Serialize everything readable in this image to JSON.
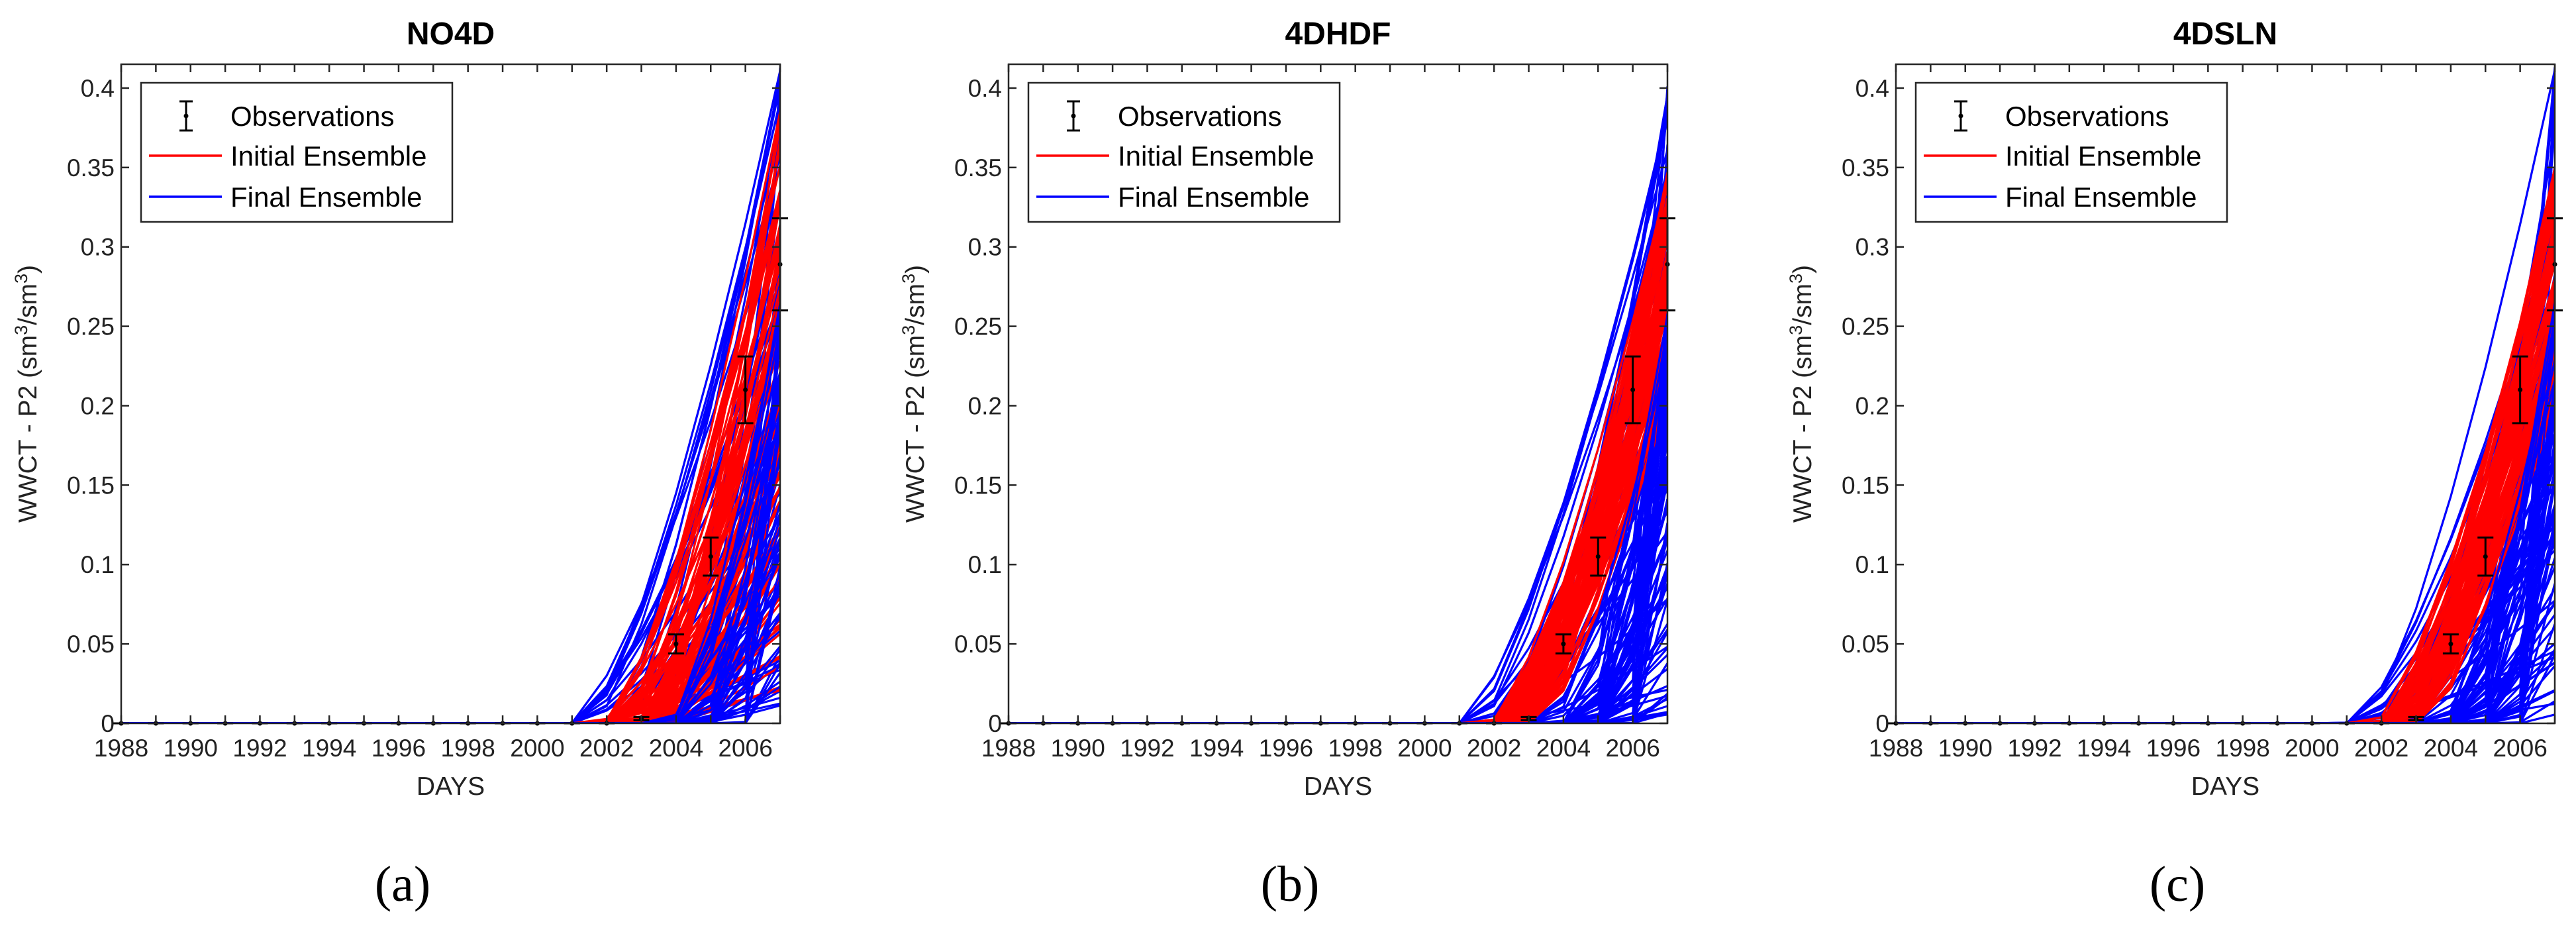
{
  "figure": {
    "captions": [
      "(a)",
      "(b)",
      "(c)"
    ]
  },
  "legend": {
    "observations": "Observations",
    "initial": "Initial Ensemble",
    "final": "Final Ensemble"
  },
  "colors": {
    "initial": "#ff0000",
    "final": "#0000ff",
    "observations": "#000000"
  },
  "chart_data": [
    {
      "type": "line",
      "title": "NO4D",
      "xlabel": "DAYS",
      "ylabel_main": "WWCT - P2 (sm",
      "ylabel_sup": "3",
      "ylabel_mid": "/sm",
      "ylabel_end": ")",
      "xlim": [
        1988,
        2007
      ],
      "ylim": [
        0,
        0.415
      ],
      "xticks": [
        1988,
        1990,
        1992,
        1994,
        1996,
        1998,
        2000,
        2002,
        2004,
        2006
      ],
      "yticks": [
        0,
        0.05,
        0.1,
        0.15,
        0.2,
        0.25,
        0.3,
        0.35,
        0.4
      ],
      "ytick_labels": [
        "0",
        "0.05",
        "0.1",
        "0.15",
        "0.2",
        "0.25",
        "0.3",
        "0.35",
        "0.4"
      ],
      "observations": {
        "x": [
          1988,
          1989,
          1990,
          1991,
          1992,
          1993,
          1994,
          1995,
          1996,
          1997,
          1998,
          1999,
          2000,
          2001,
          2002,
          2003,
          2004,
          2005,
          2006,
          2007
        ],
        "y": [
          0,
          0,
          0,
          0,
          0,
          0,
          0,
          0,
          0,
          0,
          0,
          0,
          0,
          0,
          0,
          0.003,
          0.05,
          0.105,
          0.21,
          0.289
        ],
        "err": [
          0,
          0,
          0,
          0,
          0,
          0,
          0,
          0,
          0,
          0,
          0,
          0,
          0,
          0,
          0,
          0.001,
          0.006,
          0.012,
          0.021,
          0.029
        ]
      },
      "initial_ensemble": {
        "start_year": [
          2001.8,
          2003.6
        ],
        "end_value_2007": [
          0.02,
          0.39
        ]
      },
      "final_ensemble": {
        "start_year": [
          2000.9,
          2006.3
        ],
        "end_value_2007": [
          0.01,
          0.415
        ]
      }
    },
    {
      "type": "line",
      "title": "4DHDF",
      "xlabel": "DAYS",
      "ylabel_main": "WWCT - P2 (sm",
      "ylabel_sup": "3",
      "ylabel_mid": "/sm",
      "ylabel_end": ")",
      "xlim": [
        1988,
        2007
      ],
      "ylim": [
        0,
        0.415
      ],
      "xticks": [
        1988,
        1990,
        1992,
        1994,
        1996,
        1998,
        2000,
        2002,
        2004,
        2006
      ],
      "yticks": [
        0,
        0.05,
        0.1,
        0.15,
        0.2,
        0.25,
        0.3,
        0.35,
        0.4
      ],
      "ytick_labels": [
        "0",
        "0.05",
        "0.1",
        "0.15",
        "0.2",
        "0.25",
        "0.3",
        "0.35",
        "0.4"
      ],
      "observations": {
        "x": [
          1988,
          1989,
          1990,
          1991,
          1992,
          1993,
          1994,
          1995,
          1996,
          1997,
          1998,
          1999,
          2000,
          2001,
          2002,
          2003,
          2004,
          2005,
          2006,
          2007
        ],
        "y": [
          0,
          0,
          0,
          0,
          0,
          0,
          0,
          0,
          0,
          0,
          0,
          0,
          0,
          0,
          0,
          0.003,
          0.05,
          0.105,
          0.21,
          0.289
        ],
        "err": [
          0,
          0,
          0,
          0,
          0,
          0,
          0,
          0,
          0,
          0,
          0,
          0,
          0,
          0,
          0,
          0.001,
          0.006,
          0.012,
          0.021,
          0.029
        ]
      },
      "initial_ensemble": {
        "start_year": [
          2001.8,
          2003.4
        ],
        "end_value_2007": [
          0.2,
          0.35
        ]
      },
      "final_ensemble": {
        "start_year": [
          2000.9,
          2006.3
        ],
        "end_value_2007": [
          0.005,
          0.41
        ]
      }
    },
    {
      "type": "line",
      "title": "4DSLN",
      "xlabel": "DAYS",
      "ylabel_main": "WWCT - P2 (sm",
      "ylabel_sup": "3",
      "ylabel_mid": "/sm",
      "ylabel_end": ")",
      "xlim": [
        1988,
        2007
      ],
      "ylim": [
        0,
        0.415
      ],
      "xticks": [
        1988,
        1990,
        1992,
        1994,
        1996,
        1998,
        2000,
        2002,
        2004,
        2006
      ],
      "yticks": [
        0,
        0.05,
        0.1,
        0.15,
        0.2,
        0.25,
        0.3,
        0.35,
        0.4
      ],
      "ytick_labels": [
        "0",
        "0.05",
        "0.1",
        "0.15",
        "0.2",
        "0.25",
        "0.3",
        "0.35",
        "0.4"
      ],
      "observations": {
        "x": [
          1988,
          1989,
          1990,
          1991,
          1992,
          1993,
          1994,
          1995,
          1996,
          1997,
          1998,
          1999,
          2000,
          2001,
          2002,
          2003,
          2004,
          2005,
          2006,
          2007
        ],
        "y": [
          0,
          0,
          0,
          0,
          0,
          0,
          0,
          0,
          0,
          0,
          0,
          0,
          0,
          0,
          0,
          0.003,
          0.05,
          0.105,
          0.21,
          0.289
        ],
        "err": [
          0,
          0,
          0,
          0,
          0,
          0,
          0,
          0,
          0,
          0,
          0,
          0,
          0,
          0,
          0,
          0.001,
          0.006,
          0.012,
          0.021,
          0.029
        ]
      },
      "initial_ensemble": {
        "start_year": [
          2001.8,
          2003.4
        ],
        "end_value_2007": [
          0.2,
          0.35
        ]
      },
      "final_ensemble": {
        "start_year": [
          2000.9,
          2006.3
        ],
        "end_value_2007": [
          0.005,
          0.415
        ]
      }
    }
  ]
}
